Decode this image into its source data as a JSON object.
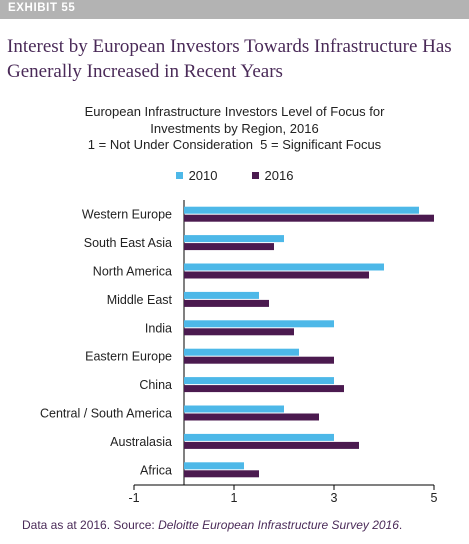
{
  "exhibit": {
    "label": "EXHIBIT 55"
  },
  "headline": "Interest by European Investors Towards Infrastructure Has Generally Increased in Recent Years",
  "chart_data": {
    "type": "bar",
    "orientation": "horizontal",
    "title_lines": [
      "European Infrastructure Investors Level of Focus for",
      "Investments by Region, 2016",
      "1 = Not Under Consideration  5 = Significant Focus"
    ],
    "categories": [
      "Western Europe",
      "South East Asia",
      "North America",
      "Middle East",
      "India",
      "Eastern Europe",
      "China",
      "Central / South America",
      "Australasia",
      "Africa"
    ],
    "series": [
      {
        "name": "2010",
        "color": "#4db8e8",
        "values": [
          4.7,
          2.0,
          4.0,
          1.5,
          3.0,
          2.3,
          3.0,
          2.0,
          3.0,
          1.2
        ]
      },
      {
        "name": "2016",
        "color": "#4b1a4f",
        "values": [
          5.0,
          1.8,
          3.7,
          1.7,
          2.2,
          3.0,
          3.2,
          2.7,
          3.5,
          1.5
        ]
      }
    ],
    "xlim": [
      -1,
      5
    ],
    "xticks": [
      "-1",
      "1",
      "3",
      "5"
    ],
    "xtick_values": [
      -1,
      1,
      3,
      5
    ],
    "legend_position": "top",
    "grid": false
  },
  "source": {
    "prefix": "Data as at 2016. Source: ",
    "citation": "Deloitte European Infrastructure Survey 2016",
    "suffix": "."
  }
}
